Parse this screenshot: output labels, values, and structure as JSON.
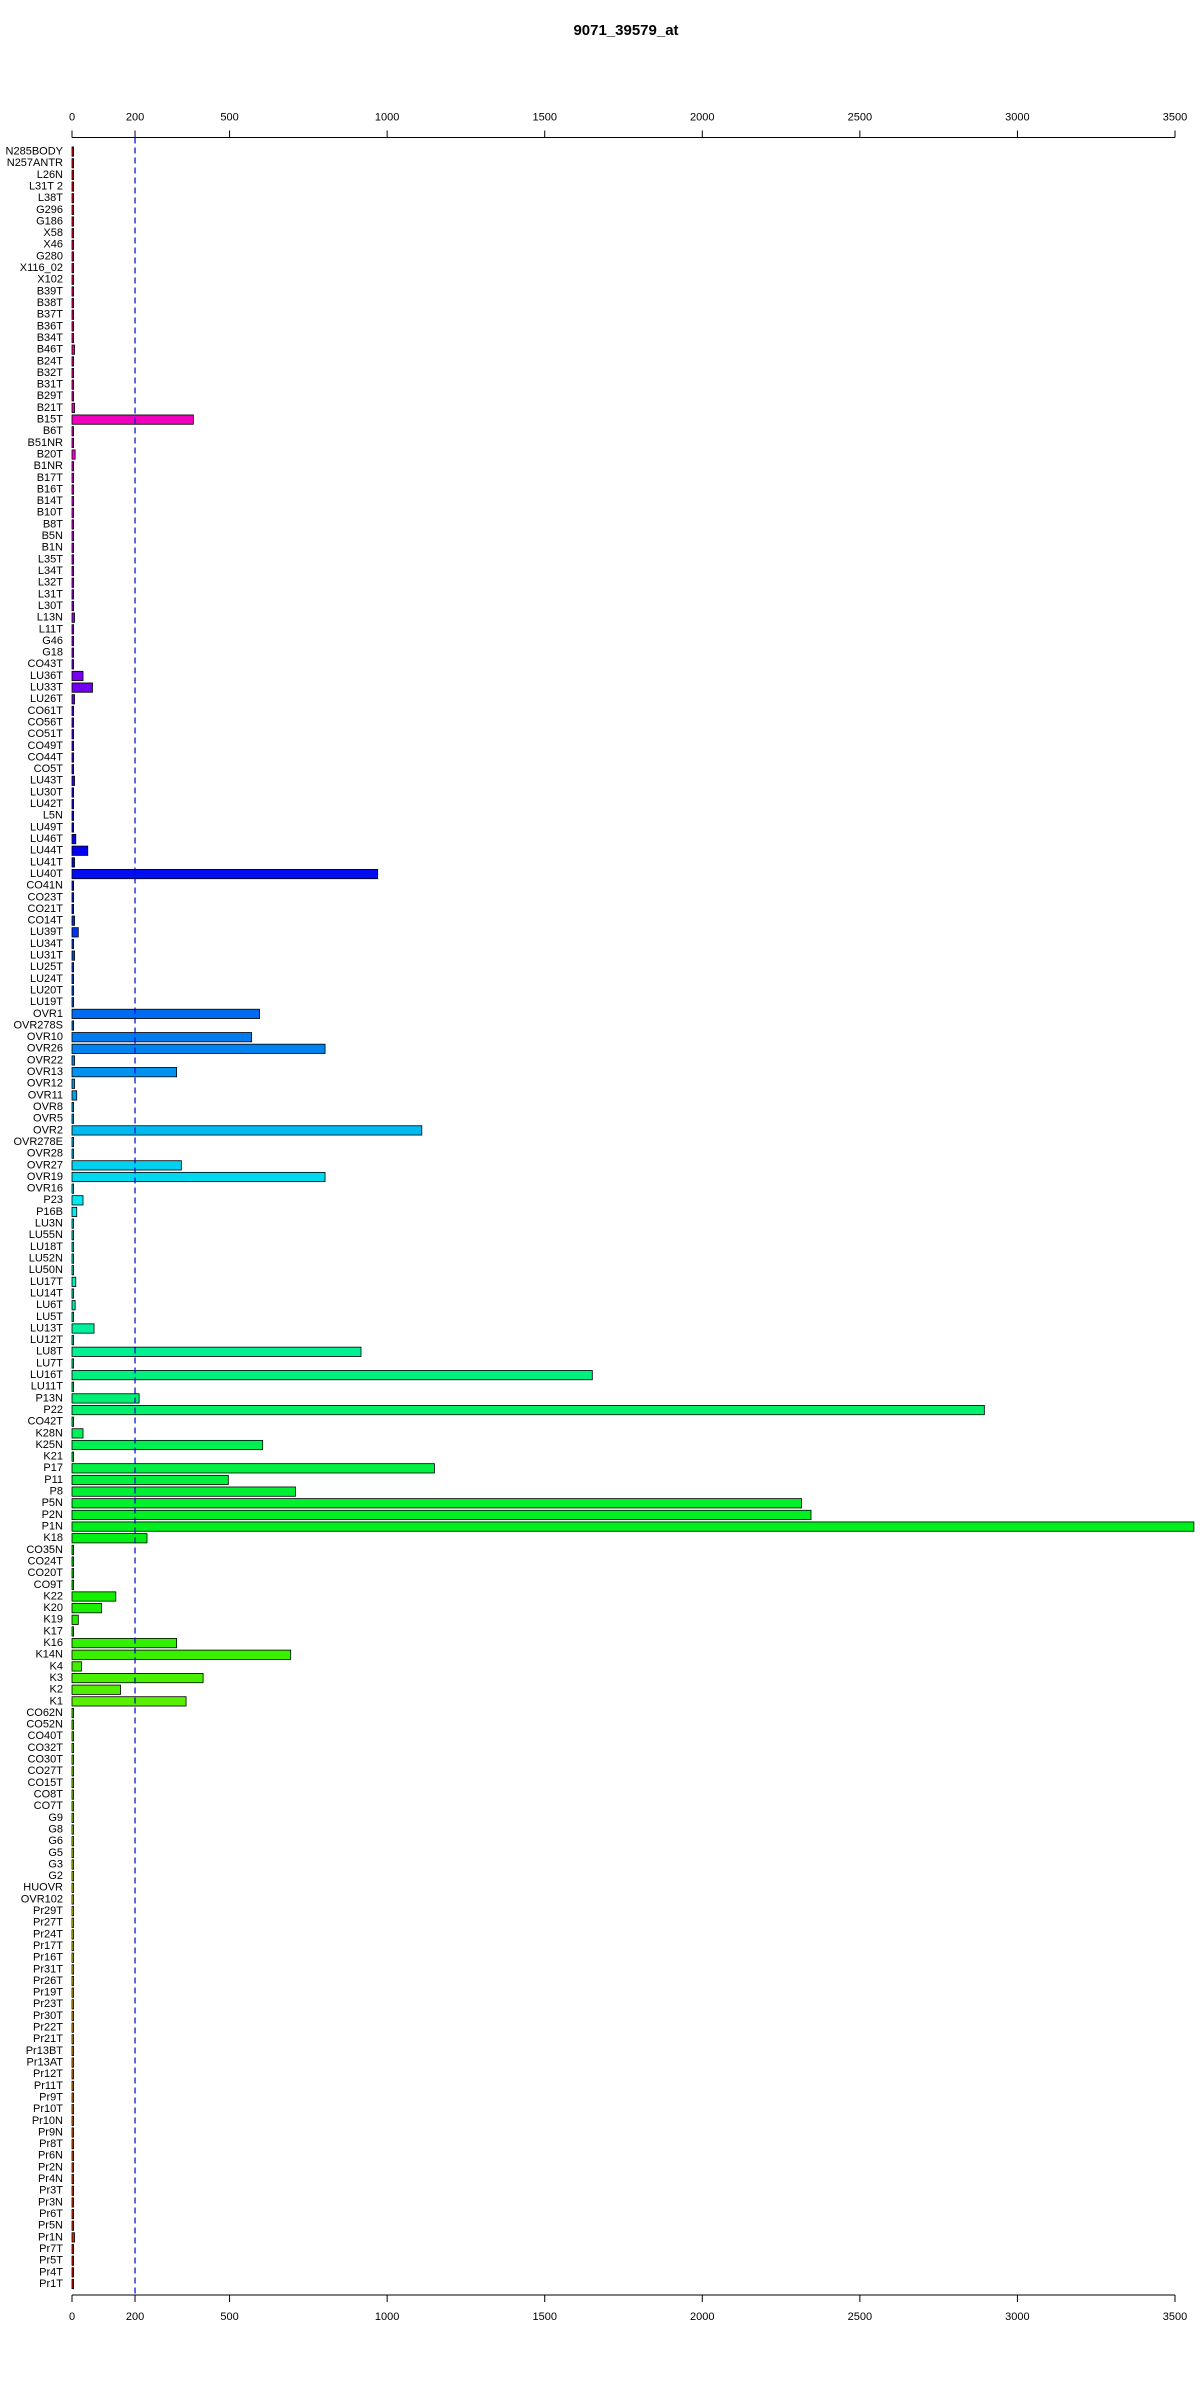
{
  "chart_data": {
    "type": "barh",
    "title": "9071_39579_at",
    "categories": [
      "N285BODY",
      "N257ANTR",
      "L26N",
      "L31T 2",
      "L38T",
      "G296",
      "G186",
      "X58",
      "X46",
      "G280",
      "X116_02",
      "X102",
      "B39T",
      "B38T",
      "B37T",
      "B36T",
      "B34T",
      "B46T",
      "B24T",
      "B32T",
      "B31T",
      "B29T",
      "B21T",
      "B15T",
      "B6T",
      "B51NR",
      "B20T",
      "B1NR",
      "B17T",
      "B16T",
      "B14T",
      "B10T",
      "B8T",
      "B5N",
      "B1N",
      "L35T",
      "L34T",
      "L32T",
      "L31T",
      "L30T",
      "L13N",
      "L11T",
      "G46",
      "G18",
      "CO43T",
      "LU36T",
      "LU33T",
      "LU26T",
      "CO61T",
      "CO56T",
      "CO51T",
      "CO49T",
      "CO44T",
      "CO5T",
      "LU43T",
      "LU30T",
      "LU42T",
      "L5N",
      "LU49T",
      "LU46T",
      "LU44T",
      "LU41T",
      "LU40T",
      "CO41N",
      "CO23T",
      "CO21T",
      "CO14T",
      "LU39T",
      "LU34T",
      "LU31T",
      "LU25T",
      "LU24T",
      "LU20T",
      "LU19T",
      "OVR1",
      "OVR278S",
      "OVR10",
      "OVR26",
      "OVR22",
      "OVR13",
      "OVR12",
      "OVR11",
      "OVR8",
      "OVR5",
      "OVR2",
      "OVR278E",
      "OVR28",
      "OVR27",
      "OVR19",
      "OVR16",
      "P23",
      "P16B",
      "LU3N",
      "LU55N",
      "LU18T",
      "LU52N",
      "LU50N",
      "LU17T",
      "LU14T",
      "LU6T",
      "LU5T",
      "LU13T",
      "LU12T",
      "LU8T",
      "LU7T",
      "LU16T",
      "LU11T",
      "P13N",
      "P22",
      "CO42T",
      "K28N",
      "K25N",
      "K21",
      "P17",
      "P11",
      "P8",
      "P5N",
      "P2N",
      "P1N",
      "K18",
      "CO35N",
      "CO24T",
      "CO20T",
      "CO9T",
      "K22",
      "K20",
      "K19",
      "K17",
      "K16",
      "K14N",
      "K4",
      "K3",
      "K2",
      "K1",
      "CO62N",
      "CO52N",
      "CO40T",
      "CO32T",
      "CO30T",
      "CO27T",
      "CO15T",
      "CO8T",
      "CO7T",
      "G9",
      "G8",
      "G6",
      "G5",
      "G3",
      "G2",
      "HUOVR",
      "OVR102",
      "Pr29T",
      "Pr27T",
      "Pr24T",
      "Pr17T",
      "Pr16T",
      "Pr31T",
      "Pr26T",
      "Pr19T",
      "Pr23T",
      "Pr30T",
      "Pr22T",
      "Pr21T",
      "Pr13BT",
      "Pr13AT",
      "Pr12T",
      "Pr11T",
      "Pr9T",
      "Pr10T",
      "Pr10N",
      "Pr9N",
      "Pr8T",
      "Pr6N",
      "Pr2N",
      "Pr4N",
      "Pr3T",
      "Pr3N",
      "Pr6T",
      "Pr5N",
      "Pr1N",
      "Pr7T",
      "Pr5T",
      "Pr4T",
      "Pr1T"
    ],
    "values": [
      5,
      5,
      5,
      5,
      5,
      5,
      5,
      5,
      5,
      5,
      5,
      5,
      5,
      5,
      5,
      5,
      5,
      8,
      5,
      5,
      5,
      5,
      8,
      385,
      5,
      5,
      10,
      5,
      5,
      5,
      5,
      5,
      5,
      5,
      5,
      5,
      5,
      5,
      5,
      5,
      8,
      5,
      5,
      5,
      5,
      35,
      65,
      8,
      5,
      5,
      5,
      5,
      5,
      5,
      8,
      5,
      5,
      5,
      5,
      12,
      50,
      8,
      970,
      5,
      5,
      5,
      8,
      20,
      5,
      8,
      5,
      5,
      5,
      5,
      595,
      5,
      570,
      803,
      8,
      332,
      8,
      15,
      5,
      5,
      1110,
      5,
      5,
      347,
      803,
      5,
      35,
      15,
      5,
      5,
      5,
      5,
      5,
      12,
      5,
      10,
      5,
      70,
      5,
      917,
      5,
      1651,
      5,
      213,
      2895,
      5,
      35,
      605,
      5,
      1150,
      496,
      709,
      2315,
      2345,
      3560,
      238,
      5,
      5,
      5,
      5,
      139,
      94,
      20,
      5,
      332,
      694,
      30,
      416,
      154,
      362,
      5,
      5,
      5,
      5,
      5,
      5,
      5,
      5,
      5,
      5,
      5,
      5,
      5,
      5,
      5,
      5,
      5,
      5,
      5,
      5,
      5,
      5,
      5,
      5,
      5,
      5,
      5,
      5,
      5,
      5,
      5,
      5,
      5,
      5,
      5,
      5,
      5,
      5,
      5,
      5,
      5,
      5,
      5,
      5,
      5,
      8,
      5,
      5,
      5,
      5
    ],
    "color_scale": "rainbow-reversed",
    "xlim": [
      0,
      3560
    ],
    "xticks": [
      0,
      200,
      500,
      1000,
      1500,
      2000,
      2500,
      3000,
      3500
    ],
    "reference_line": 200,
    "reference_line_color": "#0000cc"
  }
}
